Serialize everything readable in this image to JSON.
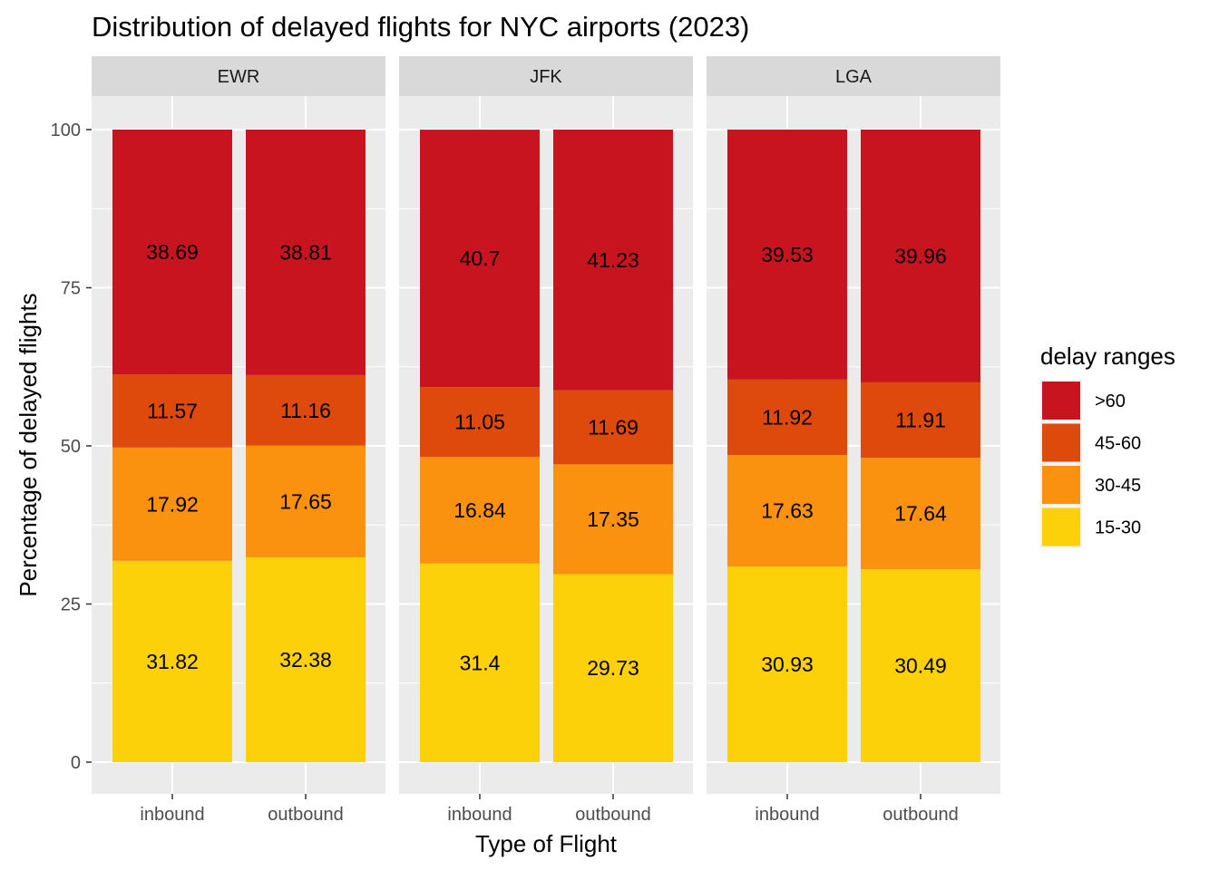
{
  "chart_data": {
    "type": "bar",
    "stacked": true,
    "percent": true,
    "title": "Distribution of delayed flights for NYC airports (2023)",
    "xlabel": "Type of Flight",
    "ylabel": "Percentage of delayed flights",
    "ylim": [
      0,
      100
    ],
    "yticks": [
      0,
      25,
      50,
      75,
      100
    ],
    "categories": [
      "inbound",
      "outbound"
    ],
    "facets": [
      "EWR",
      "JFK",
      "LGA"
    ],
    "legend": {
      "title": "delay ranges",
      "position": "right",
      "items": [
        ">60",
        "45-60",
        "30-45",
        "15-30"
      ]
    },
    "series": [
      {
        "name": "15-30",
        "color": "#FDD10A",
        "values": {
          "EWR": [
            31.82,
            32.38
          ],
          "JFK": [
            31.4,
            29.73
          ],
          "LGA": [
            30.93,
            30.49
          ]
        }
      },
      {
        "name": "30-45",
        "color": "#FB920F",
        "values": {
          "EWR": [
            17.92,
            17.65
          ],
          "JFK": [
            16.84,
            17.35
          ],
          "LGA": [
            17.63,
            17.64
          ]
        }
      },
      {
        "name": "45-60",
        "color": "#DE4A0C",
        "values": {
          "EWR": [
            11.57,
            11.16
          ],
          "JFK": [
            11.05,
            11.69
          ],
          "LGA": [
            11.92,
            11.91
          ]
        }
      },
      {
        "name": ">60",
        "color": "#C8141E",
        "values": {
          "EWR": [
            38.69,
            38.81
          ],
          "JFK": [
            40.7,
            41.23
          ],
          "LGA": [
            39.53,
            39.96
          ]
        }
      }
    ],
    "grid": true,
    "panel_background": "#EBEBEB",
    "strip_background": "#D9D9D9"
  }
}
